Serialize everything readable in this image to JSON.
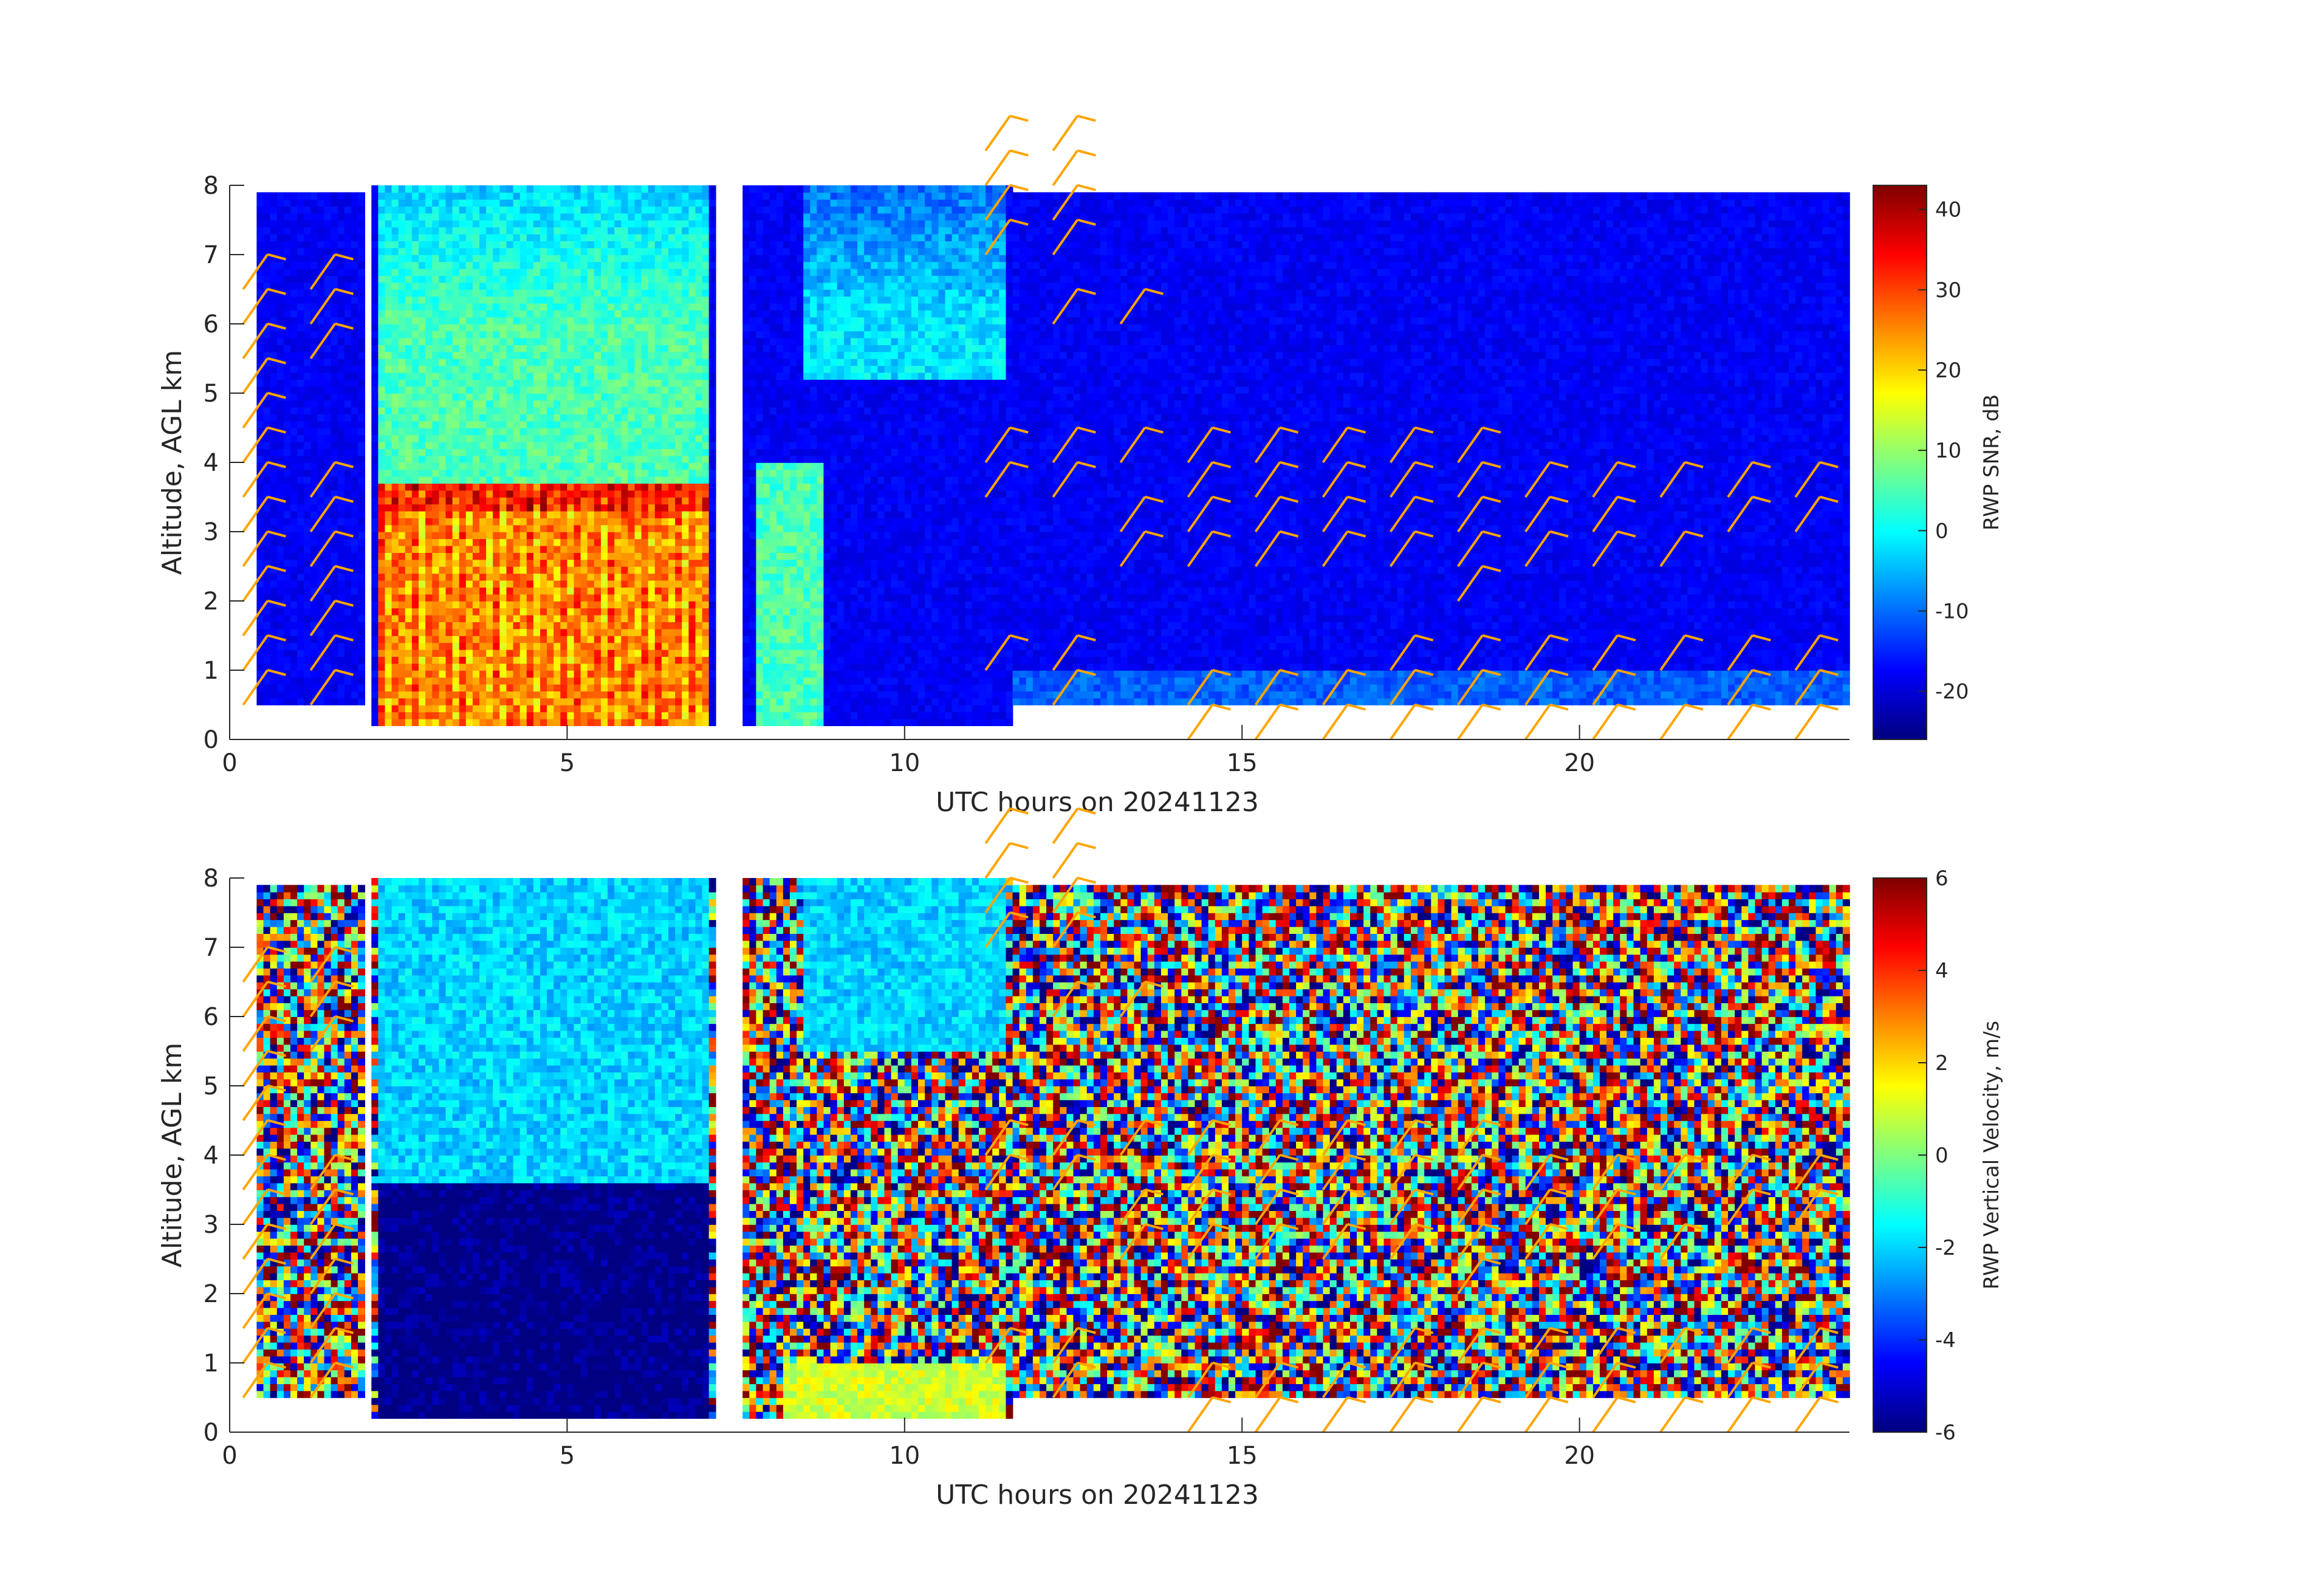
{
  "figure": {
    "background": "#ffffff",
    "barb_color": "#ffa500",
    "axis_color": "#262626"
  },
  "chart_data": [
    {
      "type": "heatmap",
      "panel": "top",
      "xlabel": "UTC hours on 20241123",
      "ylabel": "Altitude, AGL km",
      "xlim": [
        0,
        24
      ],
      "ylim": [
        0,
        8
      ],
      "xticks": [
        0,
        5,
        10,
        15,
        20
      ],
      "yticks": [
        0,
        1,
        2,
        3,
        4,
        5,
        6,
        7,
        8
      ],
      "grid": false,
      "colorbar": {
        "label": "RWP SNR, dB",
        "range": [
          -26,
          43
        ],
        "ticks": [
          -20,
          -10,
          0,
          10,
          20,
          30,
          40
        ],
        "colormap": "jet"
      },
      "data_coverage": [
        {
          "x_start": 0.4,
          "x_end": 2.0,
          "y_start": 0.5,
          "y_end": 7.9
        },
        {
          "x_start": 2.1,
          "x_end": 7.2,
          "y_start": 0.2,
          "y_end": 8.0
        },
        {
          "x_start": 7.6,
          "x_end": 11.6,
          "y_start": 0.2,
          "y_end": 8.0
        },
        {
          "x_start": 11.6,
          "x_end": 24.0,
          "y_start": 0.5,
          "y_end": 7.9
        }
      ],
      "features": [
        {
          "description": "strong precipitation echo",
          "x_start": 2.2,
          "x_end": 7.1,
          "y_start": 0.2,
          "y_end": 3.7,
          "value_db": 25
        },
        {
          "description": "bright band",
          "x_start": 2.2,
          "x_end": 7.1,
          "y_start": 3.3,
          "y_end": 3.8,
          "value_db": 33
        },
        {
          "description": "ice layer echo",
          "x_start": 2.2,
          "x_end": 7.1,
          "y_start": 3.7,
          "y_end": 8.0,
          "value_db": 5
        },
        {
          "description": "upper cloud echo",
          "x_start": 8.5,
          "x_end": 11.5,
          "y_start": 5.2,
          "y_end": 8.0,
          "value_db": -2
        },
        {
          "description": "near-surface echo",
          "x_start": 7.8,
          "x_end": 8.8,
          "y_start": 0.2,
          "y_end": 4.0,
          "value_db": 5
        }
      ],
      "wind_barbs": [
        {
          "time_hr": 0.2,
          "heights_km": [
            0.5,
            1.0,
            1.5,
            2.0,
            2.5,
            3.0,
            3.5,
            4.0,
            4.5,
            5.0,
            5.5,
            6.0,
            6.5
          ]
        },
        {
          "time_hr": 1.2,
          "heights_km": [
            0.5,
            1.0,
            1.5,
            2.0,
            2.5,
            3.0,
            3.5,
            5.5,
            6.0,
            6.5
          ]
        },
        {
          "time_hr": 11.2,
          "heights_km": [
            1.0,
            3.5,
            4.0,
            7.0,
            7.5,
            8.0,
            8.5
          ]
        },
        {
          "time_hr": 12.2,
          "heights_km": [
            0.5,
            1.0,
            3.5,
            4.0,
            6.0,
            7.0,
            7.5,
            8.0,
            8.5
          ]
        },
        {
          "time_hr": 13.2,
          "heights_km": [
            2.5,
            3.0,
            4.0,
            6.0
          ]
        },
        {
          "time_hr": 14.2,
          "heights_km": [
            0.0,
            0.5,
            2.5,
            3.0,
            3.5,
            4.0
          ]
        },
        {
          "time_hr": 15.2,
          "heights_km": [
            0.0,
            0.5,
            2.5,
            3.0,
            3.5,
            4.0
          ]
        },
        {
          "time_hr": 16.2,
          "heights_km": [
            0.0,
            0.5,
            2.5,
            3.0,
            3.5,
            4.0
          ]
        },
        {
          "time_hr": 17.2,
          "heights_km": [
            0.0,
            0.5,
            1.0,
            2.5,
            3.0,
            3.5,
            4.0
          ]
        },
        {
          "time_hr": 18.2,
          "heights_km": [
            0.0,
            0.5,
            1.0,
            2.0,
            2.5,
            3.0,
            3.5,
            4.0
          ]
        },
        {
          "time_hr": 19.2,
          "heights_km": [
            0.0,
            0.5,
            1.0,
            2.5,
            3.0,
            3.5
          ]
        },
        {
          "time_hr": 20.2,
          "heights_km": [
            0.0,
            0.5,
            1.0,
            2.5,
            3.0,
            3.5
          ]
        },
        {
          "time_hr": 21.2,
          "heights_km": [
            0.0,
            1.0,
            2.5,
            3.5
          ]
        },
        {
          "time_hr": 22.2,
          "heights_km": [
            0.0,
            0.5,
            1.0,
            3.0,
            3.5
          ]
        },
        {
          "time_hr": 23.2,
          "heights_km": [
            0.0,
            0.5,
            1.0,
            3.0,
            3.5
          ]
        }
      ]
    },
    {
      "type": "heatmap",
      "panel": "bottom",
      "xlabel": "UTC hours on 20241123",
      "ylabel": "Altitude, AGL km",
      "xlim": [
        0,
        24
      ],
      "ylim": [
        0,
        8
      ],
      "xticks": [
        0,
        5,
        10,
        15,
        20
      ],
      "yticks": [
        0,
        1,
        2,
        3,
        4,
        5,
        6,
        7,
        8
      ],
      "grid": false,
      "colorbar": {
        "label": "RWP Vertical Velocity, m/s",
        "range": [
          -6,
          6
        ],
        "ticks": [
          -6,
          -4,
          -2,
          0,
          2,
          4,
          6
        ],
        "colormap": "jet"
      },
      "data_coverage": [
        {
          "x_start": 0.4,
          "x_end": 2.0,
          "y_start": 0.5,
          "y_end": 7.9
        },
        {
          "x_start": 2.1,
          "x_end": 7.2,
          "y_start": 0.2,
          "y_end": 8.0
        },
        {
          "x_start": 7.6,
          "x_end": 11.6,
          "y_start": 0.2,
          "y_end": 8.0
        },
        {
          "x_start": 11.6,
          "x_end": 24.0,
          "y_start": 0.5,
          "y_end": 7.9
        }
      ],
      "features": [
        {
          "description": "falling precipitation",
          "x_start": 2.2,
          "x_end": 7.1,
          "y_start": 0.2,
          "y_end": 3.6,
          "value_ms": -6
        },
        {
          "description": "falling ice",
          "x_start": 2.2,
          "x_end": 7.1,
          "y_start": 3.6,
          "y_end": 8.0,
          "value_ms": -2
        },
        {
          "description": "upper cloud descent",
          "x_start": 8.5,
          "x_end": 11.5,
          "y_start": 5.5,
          "y_end": 8.0,
          "value_ms": -2
        },
        {
          "description": "near-surface updraft",
          "x_start": 8.2,
          "x_end": 11.5,
          "y_start": 0.2,
          "y_end": 1.0,
          "value_ms": 1
        }
      ]
    }
  ]
}
